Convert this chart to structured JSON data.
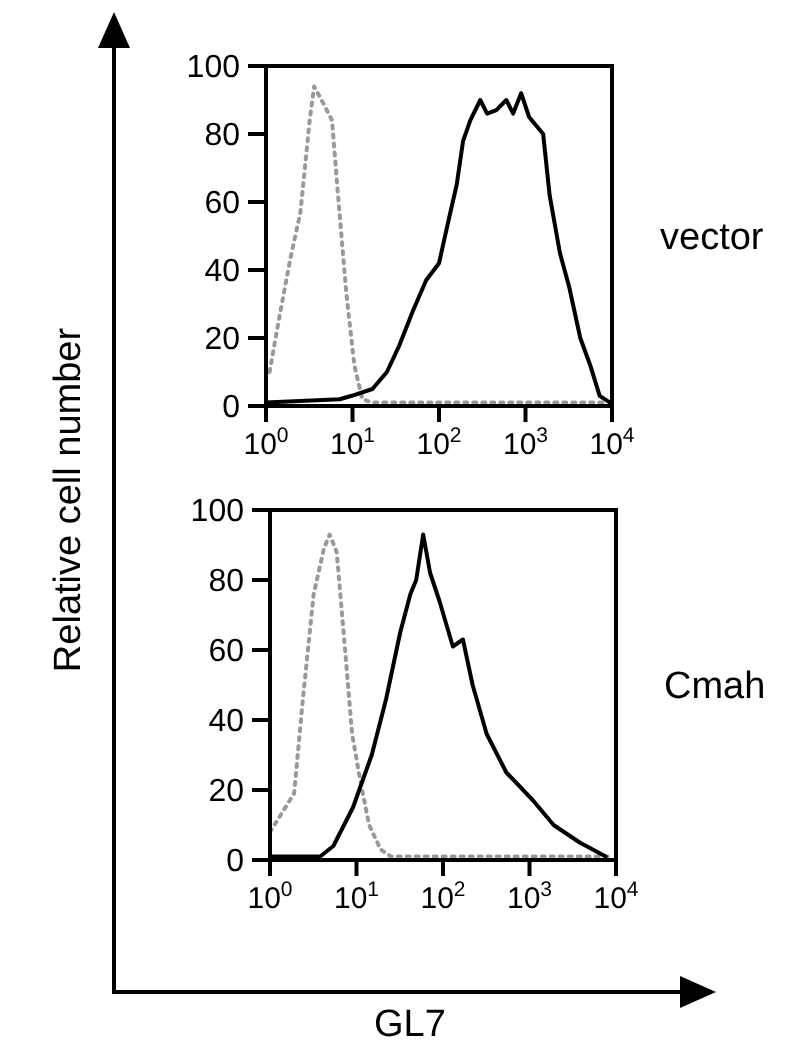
{
  "chart_data": [
    {
      "type": "line",
      "annotations": [
        "vector"
      ],
      "ylabel": "Relative cell number",
      "log": "x",
      "xlim": [
        1,
        10000
      ],
      "ylim": [
        0,
        100
      ],
      "xticks": [
        {
          "value": 1,
          "label": "10$^{0}$"
        },
        {
          "value": 10,
          "label": "10$^{1}$"
        },
        {
          "value": 100,
          "label": "10$^{2}$"
        },
        {
          "value": 1000,
          "label": "10$^{3}$"
        },
        {
          "value": 10000,
          "label": "10$^{4}$"
        }
      ],
      "yticks": [
        0,
        20,
        40,
        60,
        80,
        100
      ],
      "series": [
        {
          "color": "#999999",
          "line_style": "dotted",
          "x": [
            1.1,
            1.4,
            1.9,
            2.5,
            3.2,
            3.6,
            4.6,
            5.8,
            6.8,
            8.5,
            10.5,
            13,
            17,
            8700
          ],
          "values": [
            10,
            25,
            43,
            57,
            84,
            94,
            89,
            84,
            62,
            33,
            12,
            2,
            1,
            1
          ]
        },
        {
          "color": "#000000",
          "line_style": "solid",
          "x": [
            1,
            7.1,
            9.8,
            17,
            25,
            35,
            50,
            71,
            100,
            130,
            160,
            190,
            230,
            300,
            360,
            460,
            600,
            720,
            890,
            1100,
            1600,
            1900,
            2500,
            3200,
            4300,
            5600,
            7200,
            9500
          ],
          "values": [
            1,
            2,
            3,
            5,
            10,
            18,
            28,
            37,
            42,
            55,
            65,
            78,
            84,
            90,
            86,
            87,
            90,
            86,
            92,
            85,
            80,
            62,
            45,
            35,
            20,
            12,
            3,
            1
          ]
        }
      ]
    },
    {
      "type": "line",
      "annotations": [
        "Cmah"
      ],
      "xlabel": "GL7",
      "log": "x",
      "xlim": [
        1,
        10000
      ],
      "ylim": [
        0,
        100
      ],
      "xticks": [
        {
          "value": 1,
          "label": "10$^{0}$"
        },
        {
          "value": 10,
          "label": "10$^{1}$"
        },
        {
          "value": 100,
          "label": "10$^{2}$"
        },
        {
          "value": 1000,
          "label": "10$^{3}$"
        },
        {
          "value": 10000,
          "label": "10$^{4}$"
        }
      ],
      "yticks": [
        0,
        20,
        40,
        60,
        80,
        100
      ],
      "series": [
        {
          "color": "#999999",
          "line_style": "dotted",
          "x": [
            1.0,
            1.9,
            2.4,
            3.2,
            4.2,
            4.9,
            5.9,
            7.1,
            8.9,
            11,
            14,
            19,
            25,
            9100
          ],
          "values": [
            8,
            19,
            46,
            76,
            89,
            93,
            88,
            65,
            36,
            23,
            10,
            3,
            1,
            1
          ]
        },
        {
          "color": "#000000",
          "line_style": "solid",
          "x": [
            1,
            3.8,
            5.4,
            9.1,
            15,
            22,
            32,
            42,
            49,
            59,
            71,
            91,
            130,
            170,
            220,
            320,
            540,
            1100,
            1900,
            3800,
            7600
          ],
          "values": [
            1,
            1,
            4,
            15,
            30,
            46,
            65,
            76,
            80,
            93,
            82,
            74,
            61,
            63,
            50,
            36,
            25,
            17,
            10,
            5,
            1
          ]
        }
      ]
    }
  ]
}
